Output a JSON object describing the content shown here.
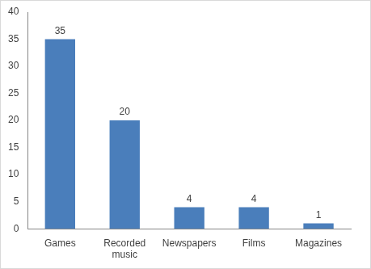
{
  "chart_data": {
    "type": "bar",
    "categories": [
      "Games",
      "Recorded music",
      "Newspapers",
      "Films",
      "Magazines"
    ],
    "values": [
      35,
      20,
      4,
      4,
      1
    ],
    "color": "#4a7ebb",
    "ylim": [
      0,
      40
    ],
    "yticks": [
      0,
      5,
      10,
      15,
      20,
      25,
      30,
      35,
      40
    ],
    "grid": false,
    "data_labels": true
  }
}
